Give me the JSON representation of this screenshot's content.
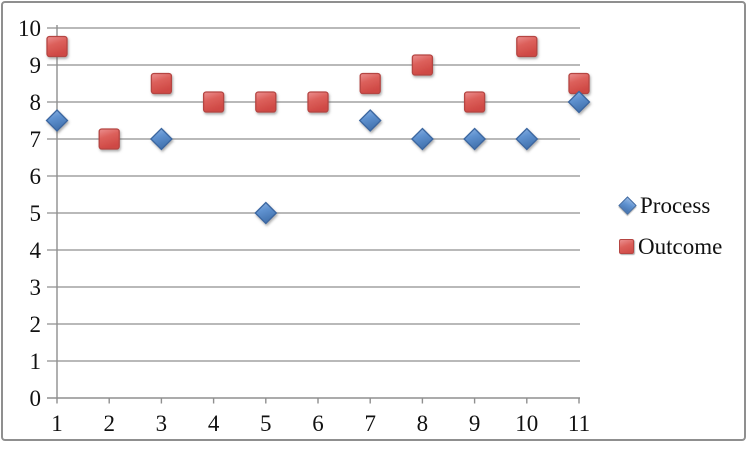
{
  "chart_data": {
    "type": "scatter",
    "title": "",
    "xlabel": "",
    "ylabel": "",
    "series": [
      {
        "name": "Process",
        "marker": "diamond",
        "color": "#4F81BD",
        "points": [
          [
            1,
            7.5
          ],
          [
            3,
            7
          ],
          [
            5,
            5
          ],
          [
            7,
            7.5
          ],
          [
            8,
            7
          ],
          [
            9,
            7
          ],
          [
            10,
            7
          ],
          [
            11,
            8
          ]
        ]
      },
      {
        "name": "Outcome",
        "marker": "square",
        "color": "#C0504D",
        "points": [
          [
            1,
            9.5
          ],
          [
            2,
            7
          ],
          [
            3,
            8.5
          ],
          [
            4,
            8
          ],
          [
            5,
            8
          ],
          [
            6,
            8
          ],
          [
            7,
            8.5
          ],
          [
            8,
            9
          ],
          [
            9,
            8
          ],
          [
            10,
            9.5
          ],
          [
            11,
            8.5
          ]
        ]
      }
    ],
    "x_ticks": [
      "1",
      "2",
      "3",
      "4",
      "5",
      "6",
      "7",
      "8",
      "9",
      "10",
      "11"
    ],
    "y_ticks": [
      "0",
      "1",
      "2",
      "3",
      "4",
      "5",
      "6",
      "7",
      "8",
      "9",
      "10"
    ],
    "xlim": [
      0.8,
      11.05
    ],
    "ylim": [
      0,
      10
    ],
    "grid": "horizontal-major",
    "legend_position": "right"
  },
  "legend": {
    "items": [
      {
        "label": "Process",
        "marker": "diamond"
      },
      {
        "label": "Outcome",
        "marker": "square"
      }
    ]
  },
  "colors": {
    "gridline": "#a2a2a2",
    "axis": "#8f8f8f",
    "frame_border": "#8f8f8f",
    "background": "#ffffff",
    "text": "#111111",
    "blue_fill": "#5f92d0",
    "blue_stroke": "#3a66a0",
    "red_fill": "#dc605b",
    "red_stroke": "#b54542"
  }
}
